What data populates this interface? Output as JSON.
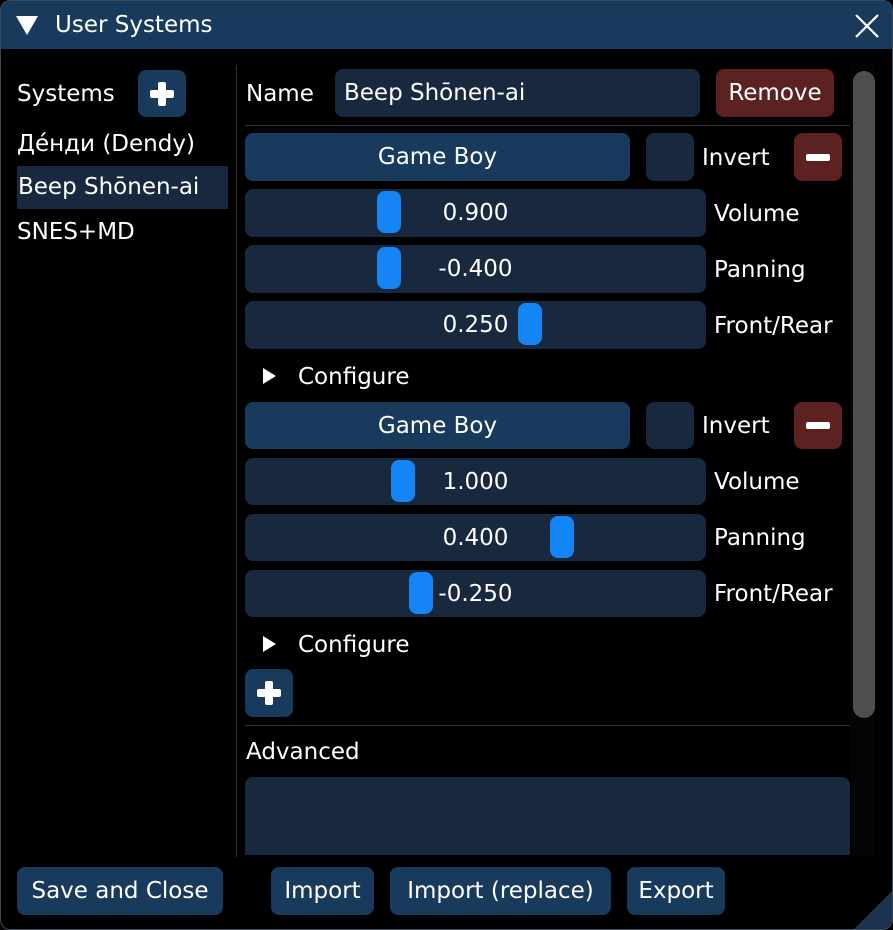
{
  "window": {
    "title": "User Systems",
    "collapse_icon": "triangle-down-icon",
    "close_icon": "close-icon"
  },
  "sidebar": {
    "header": "Systems",
    "items": [
      {
        "label": "Де́нди (Dendy)",
        "selected": false
      },
      {
        "label": "Beep Shōnen-ai",
        "selected": true
      },
      {
        "label": "SNES+MD",
        "selected": false
      }
    ]
  },
  "editor": {
    "name_label": "Name",
    "name_value": "Beep Shōnen-ai",
    "remove_label": "Remove",
    "chips": [
      {
        "type": "Game Boy",
        "invert_label": "Invert",
        "invert": false,
        "volume": "0.900",
        "panning": "-0.400",
        "front_rear": "0.250",
        "volume_label": "Volume",
        "panning_label": "Panning",
        "front_rear_label": "Front/Rear",
        "configure_label": "Configure"
      },
      {
        "type": "Game Boy",
        "invert_label": "Invert",
        "invert": false,
        "volume": "1.000",
        "panning": "0.400",
        "front_rear": "-0.250",
        "volume_label": "Volume",
        "panning_label": "Panning",
        "front_rear_label": "Front/Rear",
        "configure_label": "Configure"
      }
    ],
    "advanced_label": "Advanced",
    "advanced_value": ""
  },
  "footer": {
    "save_close": "Save and Close",
    "import": "Import",
    "import_replace": "Import (replace)",
    "export": "Export"
  },
  "colors": {
    "title_bar": "#183a5c",
    "button": "#183a5c",
    "frame": "#18283f",
    "danger": "#5c2222",
    "slider_grab": "#1585f5"
  }
}
